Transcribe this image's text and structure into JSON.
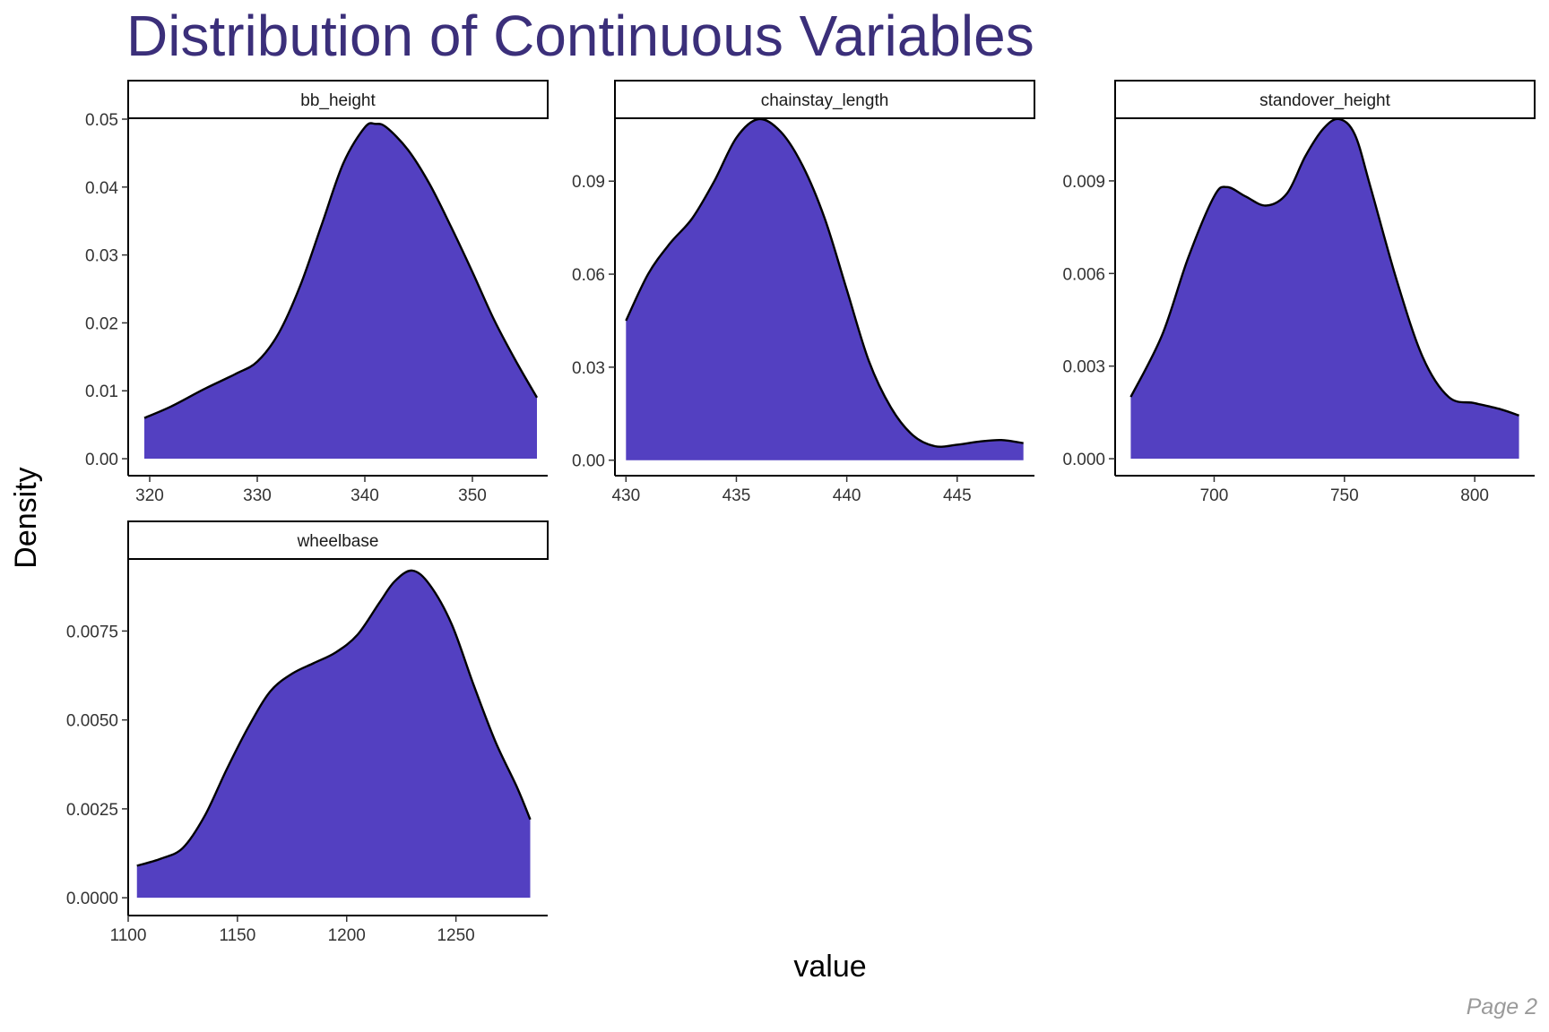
{
  "title": "Distribution of Continuous Variables",
  "page_label": "Page 2",
  "colors": {
    "title": "#3b2f7a",
    "fill": "#5340c1",
    "stroke": "#000000"
  },
  "chart_data": {
    "type": "area",
    "subtype": "density-facets",
    "xlabel": "value",
    "ylabel": "Density",
    "grid": false,
    "legend": "none",
    "panels": [
      {
        "name": "bb_height",
        "xlim": [
          318,
          357
        ],
        "ylim": [
          -0.0025,
          0.05
        ],
        "xticks": [
          320,
          330,
          340,
          350
        ],
        "yticks": [
          0.0,
          0.01,
          0.02,
          0.03,
          0.04,
          0.05
        ],
        "ytick_labels": [
          "0.00",
          "0.01",
          "0.02",
          "0.03",
          "0.04",
          "0.05"
        ],
        "x": [
          319.5,
          322,
          325,
          328,
          330,
          332,
          334,
          336,
          338,
          340,
          341,
          342,
          344,
          346,
          348,
          350,
          352,
          354,
          356
        ],
        "y": [
          0.006,
          0.0077,
          0.0102,
          0.0125,
          0.0143,
          0.0185,
          0.0255,
          0.0345,
          0.0435,
          0.0488,
          0.0493,
          0.0488,
          0.0455,
          0.0405,
          0.0342,
          0.0275,
          0.0205,
          0.0145,
          0.009
        ]
      },
      {
        "name": "chainstay_length",
        "xlim": [
          429.5,
          448.5
        ],
        "ylim": [
          -0.005,
          0.11
        ],
        "xticks": [
          430,
          435,
          440,
          445
        ],
        "yticks": [
          0.0,
          0.03,
          0.06,
          0.09
        ],
        "ytick_labels": [
          "0.00",
          "0.03",
          "0.06",
          "0.09"
        ],
        "x": [
          430,
          431,
          432,
          433,
          434,
          435,
          436,
          437,
          438,
          439,
          440,
          441,
          442,
          443,
          444,
          445,
          446,
          447,
          448
        ],
        "y": [
          0.045,
          0.06,
          0.07,
          0.078,
          0.09,
          0.104,
          0.11,
          0.106,
          0.095,
          0.078,
          0.055,
          0.032,
          0.017,
          0.008,
          0.0045,
          0.005,
          0.006,
          0.0065,
          0.0055
        ]
      },
      {
        "name": "standover_height",
        "xlim": [
          662,
          823
        ],
        "ylim": [
          -0.00055,
          0.011
        ],
        "xticks": [
          700,
          750,
          800
        ],
        "yticks": [
          0.0,
          0.003,
          0.006,
          0.009
        ],
        "ytick_labels": [
          "0.000",
          "0.003",
          "0.006",
          "0.009"
        ],
        "x": [
          668,
          680,
          690,
          700,
          705,
          712,
          720,
          728,
          735,
          742,
          748,
          754,
          760,
          770,
          780,
          790,
          800,
          810,
          817
        ],
        "y": [
          0.002,
          0.004,
          0.0065,
          0.0085,
          0.0088,
          0.0085,
          0.0082,
          0.0086,
          0.0098,
          0.0107,
          0.011,
          0.0105,
          0.0088,
          0.0058,
          0.0033,
          0.002,
          0.0018,
          0.0016,
          0.0014
        ]
      },
      {
        "name": "wheelbase",
        "xlim": [
          1100,
          1292
        ],
        "ylim": [
          -0.0005,
          0.0095
        ],
        "xticks": [
          1100,
          1150,
          1200,
          1250
        ],
        "yticks": [
          0.0,
          0.0025,
          0.005,
          0.0075
        ],
        "ytick_labels": [
          "0.0000",
          "0.0025",
          "0.0050",
          "0.0075"
        ],
        "x": [
          1104,
          1115,
          1125,
          1135,
          1145,
          1155,
          1165,
          1175,
          1185,
          1195,
          1205,
          1215,
          1222,
          1230,
          1238,
          1248,
          1258,
          1268,
          1278,
          1284
        ],
        "y": [
          0.0009,
          0.0011,
          0.0014,
          0.0023,
          0.0036,
          0.0048,
          0.0058,
          0.0063,
          0.0066,
          0.0069,
          0.0074,
          0.0083,
          0.0089,
          0.0092,
          0.0088,
          0.0077,
          0.006,
          0.0044,
          0.0031,
          0.0022
        ]
      }
    ]
  }
}
